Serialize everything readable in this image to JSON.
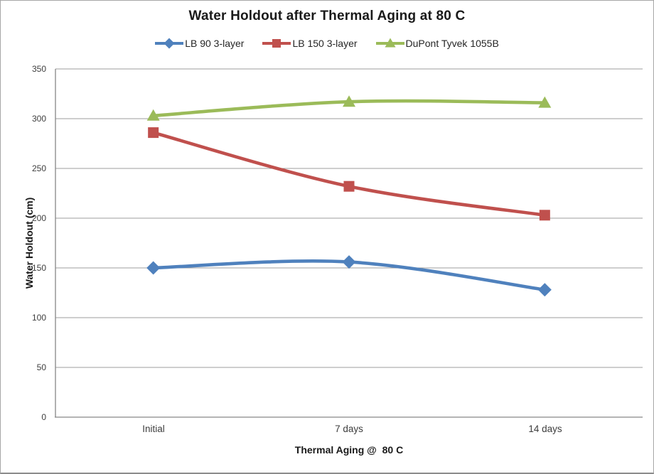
{
  "chart_data": {
    "type": "line",
    "title": "Water Holdout after Thermal Aging at 80 C",
    "xlabel": "Thermal Aging @  80 C",
    "ylabel": "Water Holdout (cm)",
    "categories": [
      "Initial",
      "7 days",
      "14 days"
    ],
    "series": [
      {
        "name": "LB 90 3-layer",
        "color": "#4F81BD",
        "marker": "diamond",
        "values": [
          150,
          156,
          128
        ]
      },
      {
        "name": "LB 150 3-layer",
        "color": "#C0504D",
        "marker": "square",
        "values": [
          286,
          232,
          203
        ]
      },
      {
        "name": "DuPont Tyvek 1055B",
        "color": "#9BBB59",
        "marker": "triangle",
        "values": [
          303,
          317,
          316
        ]
      }
    ],
    "ylim": [
      0,
      350
    ],
    "ytick_step": 50,
    "ytick_labels": [
      "0",
      "50",
      "100",
      "150",
      "200",
      "250",
      "300",
      "350"
    ],
    "grid": "horizontal",
    "legend_position": "top",
    "line_style": "smoothed"
  },
  "colors": {
    "gridline": "#9d9d9d",
    "axis": "#868686",
    "background": "#ffffff"
  }
}
